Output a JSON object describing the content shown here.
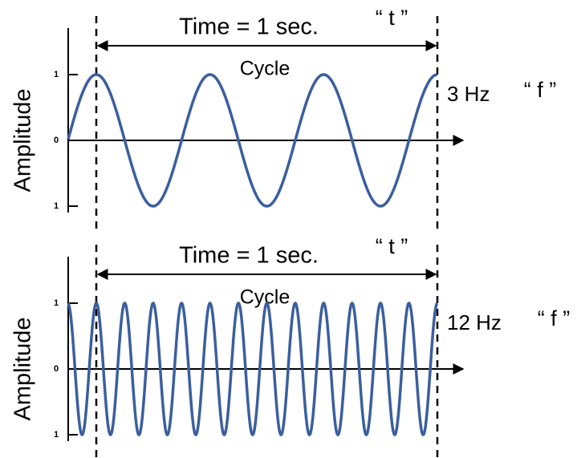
{
  "panels": [
    {
      "y_axis_label": "Amplitude",
      "ticks": [
        "1",
        "0",
        "1"
      ],
      "time_label": "Time = 1 sec.",
      "t_label": "“ t ”",
      "cycle_label": "Cycle",
      "frequency_label": "3 Hz",
      "f_label": "“ f ”"
    },
    {
      "y_axis_label": "Amplitude",
      "ticks": [
        "1",
        "0",
        "1"
      ],
      "time_label": "Time = 1 sec.",
      "t_label": "“ t ”",
      "cycle_label": "Cycle",
      "frequency_label": "12 Hz",
      "f_label": "“ f ”"
    }
  ]
}
